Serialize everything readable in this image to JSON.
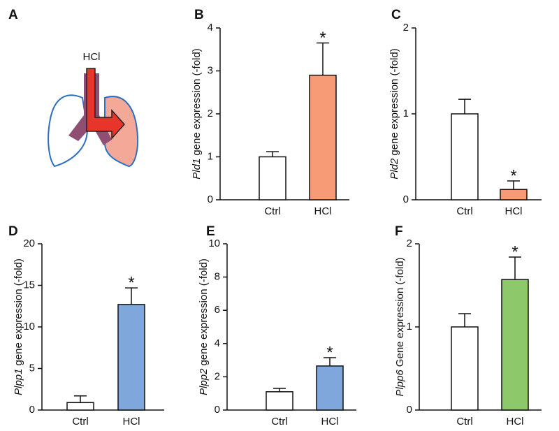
{
  "panel_a": {
    "label": "A",
    "text": "HCl"
  },
  "chart_data": [
    {
      "type": "bar",
      "label": "B",
      "ylabel_gene": "Pld1",
      "ylabel": "gene expression (-fold)",
      "categories": [
        "Ctrl",
        "HCl"
      ],
      "values": [
        1.0,
        2.9
      ],
      "errors": [
        0.12,
        0.75
      ],
      "significance": [
        null,
        "*"
      ],
      "colors": [
        "#ffffff",
        "#f79b77"
      ],
      "ylim": [
        0,
        4
      ],
      "yticks": [
        0,
        1,
        2,
        3,
        4
      ]
    },
    {
      "type": "bar",
      "label": "C",
      "ylabel_gene": "Pld2",
      "ylabel": "gene expression (-fold)",
      "categories": [
        "Ctrl",
        "HCl"
      ],
      "values": [
        1.0,
        0.12
      ],
      "errors": [
        0.17,
        0.1
      ],
      "significance": [
        null,
        "*"
      ],
      "colors": [
        "#ffffff",
        "#f79b77"
      ],
      "ylim": [
        0,
        2
      ],
      "yticks": [
        0,
        1,
        2
      ]
    },
    {
      "type": "bar",
      "label": "D",
      "ylabel_gene": "Plpp1",
      "ylabel": "gene expression (-fold)",
      "categories": [
        "Ctrl",
        "HCl"
      ],
      "values": [
        0.9,
        12.7
      ],
      "errors": [
        0.8,
        2.0
      ],
      "significance": [
        null,
        "*"
      ],
      "colors": [
        "#ffffff",
        "#7fa7dc"
      ],
      "ylim": [
        0,
        20
      ],
      "yticks": [
        0,
        5,
        10,
        15,
        20
      ]
    },
    {
      "type": "bar",
      "label": "E",
      "ylabel_gene": "Plpp2",
      "ylabel": "gene expression (-fold)",
      "categories": [
        "Ctrl",
        "HCl"
      ],
      "values": [
        1.1,
        2.65
      ],
      "errors": [
        0.2,
        0.5
      ],
      "significance": [
        null,
        "*"
      ],
      "colors": [
        "#ffffff",
        "#7fa7dc"
      ],
      "ylim": [
        0,
        10
      ],
      "yticks": [
        0,
        2,
        4,
        6,
        8,
        10
      ]
    },
    {
      "type": "bar",
      "label": "F",
      "ylabel_gene": "Plpp6",
      "ylabel": "Gene expression (-fold)",
      "categories": [
        "Ctrl",
        "HCl"
      ],
      "values": [
        1.0,
        1.57
      ],
      "errors": [
        0.16,
        0.27
      ],
      "significance": [
        null,
        "*"
      ],
      "colors": [
        "#ffffff",
        "#8dc96a"
      ],
      "ylim": [
        0,
        2
      ],
      "yticks": [
        0,
        1,
        2
      ]
    }
  ]
}
